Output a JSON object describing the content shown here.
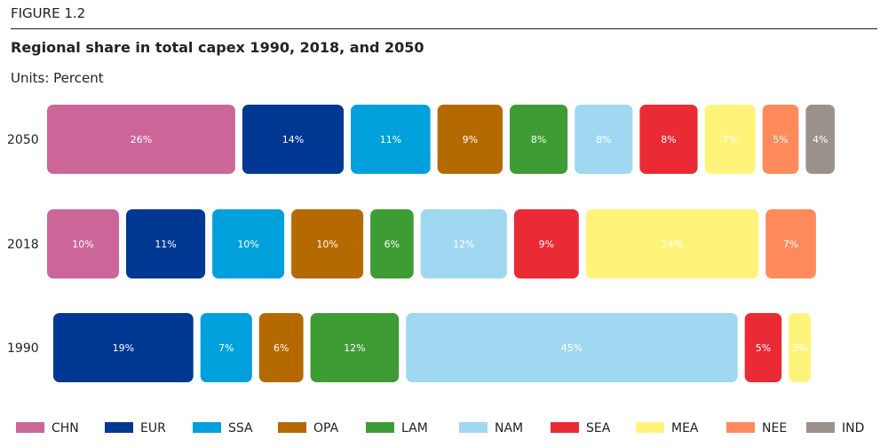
{
  "figure_label": "FIGURE 1.2",
  "chart_data": {
    "type": "bar",
    "orientation": "horizontal",
    "stacked": true,
    "title": "Regional share in total capex 1990, 2018, and 2050",
    "units": "Units: Percent",
    "legend_position": "bottom",
    "grid": false,
    "series": [
      {
        "name": "CHN",
        "color": "#cc6699"
      },
      {
        "name": "EUR",
        "color": "#003893"
      },
      {
        "name": "SSA",
        "color": "#00a0dc"
      },
      {
        "name": "OPA",
        "color": "#b56a00"
      },
      {
        "name": "LAM",
        "color": "#3e9c35"
      },
      {
        "name": "NAM",
        "color": "#9fd8f0"
      },
      {
        "name": "SEA",
        "color": "#ea2a35"
      },
      {
        "name": "MEA",
        "color": "#fff47a"
      },
      {
        "name": "NEE",
        "color": "#ff8a5c"
      },
      {
        "name": "IND",
        "color": "#9a918a"
      }
    ],
    "rows": [
      {
        "category": "2050",
        "values": [
          26,
          14,
          11,
          9,
          8,
          8,
          8,
          7,
          5,
          4
        ],
        "labels": [
          "26%",
          "14%",
          "11%",
          "9%",
          "8%",
          "8%",
          "8%",
          "7%",
          "5%",
          "4%"
        ]
      },
      {
        "category": "2018",
        "values": [
          10,
          11,
          10,
          10,
          6,
          12,
          9,
          24,
          7,
          null
        ],
        "labels": [
          "10%",
          "11%",
          "10%",
          "10%",
          "6%",
          "12%",
          "9%",
          "24%",
          "7%",
          ""
        ]
      },
      {
        "category": "1990",
        "values": [
          null,
          19,
          7,
          6,
          12,
          45,
          5,
          3,
          null,
          null
        ],
        "labels": [
          "",
          "19%",
          "7%",
          "6%",
          "12%",
          "45%",
          "5%",
          "3%",
          "",
          ""
        ]
      }
    ]
  }
}
